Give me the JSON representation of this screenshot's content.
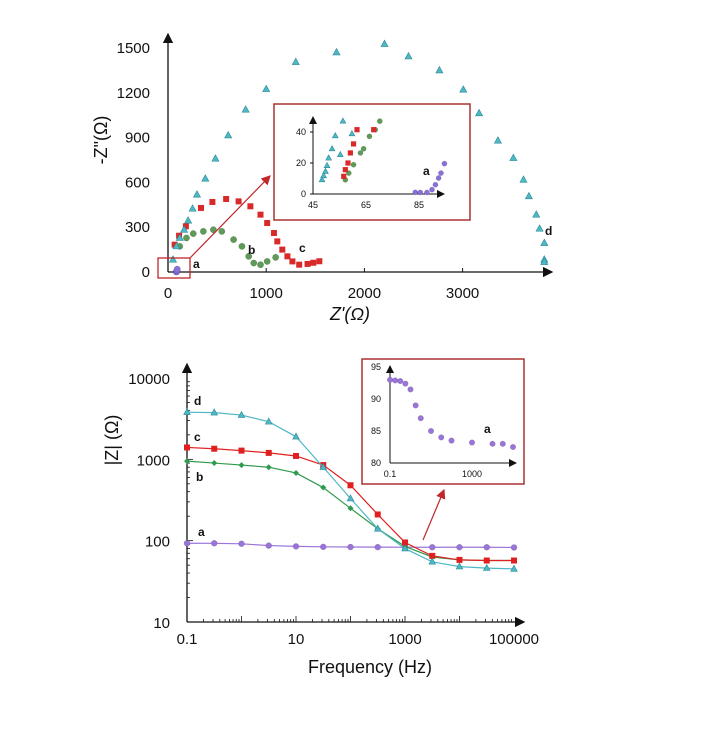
{
  "chart_data": [
    {
      "type": "scatter",
      "panel": "nyquist",
      "xlabel": "Z'(Ω)",
      "ylabel": "-Z\"(Ω)",
      "xlim": [
        0,
        3900
      ],
      "ylim": [
        0,
        1550
      ],
      "xticks": [
        "0",
        "1000",
        "2000",
        "3000"
      ],
      "yticks": [
        "0",
        "300",
        "600",
        "900",
        "1200",
        "1500"
      ],
      "grid": false,
      "series": [
        {
          "name": "a",
          "color": "#8a6fd8",
          "marker": "circle",
          "points": [
            [
              84,
              1
            ],
            [
              88,
              1
            ],
            [
              90,
              3
            ],
            [
              92,
              10
            ],
            [
              94,
              19
            ]
          ]
        },
        {
          "name": "b",
          "color": "#5e9a58",
          "marker": "circle",
          "points": [
            [
              120,
              172
            ],
            [
              188,
              228
            ],
            [
              257,
              257
            ],
            [
              360,
              272
            ],
            [
              462,
              283
            ],
            [
              548,
              272
            ],
            [
              668,
              217
            ],
            [
              753,
              172
            ],
            [
              822,
              105
            ],
            [
              873,
              60
            ],
            [
              942,
              49
            ],
            [
              1010,
              71
            ],
            [
              1096,
              98
            ]
          ]
        },
        {
          "name": "c",
          "color": "#d92a2a",
          "marker": "square",
          "points": [
            [
              68,
              183
            ],
            [
              113,
              243
            ],
            [
              182,
              306
            ],
            [
              336,
              429
            ],
            [
              452,
              469
            ],
            [
              592,
              489
            ],
            [
              719,
              473
            ],
            [
              839,
              440
            ],
            [
              942,
              384
            ],
            [
              1010,
              328
            ],
            [
              1079,
              261
            ],
            [
              1113,
              205
            ],
            [
              1164,
              150
            ],
            [
              1216,
              105
            ],
            [
              1267,
              71
            ],
            [
              1336,
              49
            ],
            [
              1421,
              54
            ],
            [
              1480,
              62
            ],
            [
              1541,
              72
            ]
          ]
        },
        {
          "name": "d",
          "color": "#4fb8c6",
          "marker": "triangle",
          "points": [
            [
              51,
              83
            ],
            [
              86,
              172
            ],
            [
              120,
              228
            ],
            [
              164,
              283
            ],
            [
              205,
              344
            ],
            [
              250,
              424
            ],
            [
              295,
              518
            ],
            [
              380,
              625
            ],
            [
              483,
              759
            ],
            [
              613,
              915
            ],
            [
              791,
              1087
            ],
            [
              1000,
              1225
            ],
            [
              1301,
              1406
            ],
            [
              1716,
              1471
            ],
            [
              2205,
              1527
            ],
            [
              2449,
              1444
            ],
            [
              2764,
              1350
            ],
            [
              3007,
              1221
            ],
            [
              3168,
              1063
            ],
            [
              3360,
              880
            ],
            [
              3517,
              763
            ],
            [
              3620,
              618
            ],
            [
              3675,
              507
            ],
            [
              3750,
              384
            ],
            [
              3784,
              290
            ],
            [
              3832,
              194
            ],
            [
              3832,
              83
            ],
            [
              3832,
              67
            ]
          ]
        }
      ]
    },
    {
      "type": "scatter",
      "panel": "nyquist-inset",
      "xlim": [
        45,
        95
      ],
      "ylim": [
        0,
        48
      ],
      "xticks": [
        "45",
        "65",
        "85"
      ],
      "yticks": [
        "0",
        "20",
        "40"
      ],
      "series": [
        {
          "name": "a",
          "color": "#8a6fd8",
          "marker": "circle",
          "points": [
            [
              83.6,
              1.1
            ],
            [
              85.5,
              1
            ],
            [
              88,
              1
            ],
            [
              89.9,
              2.8
            ],
            [
              91.2,
              6
            ],
            [
              92.4,
              10.3
            ],
            [
              93.3,
              13.5
            ],
            [
              94.6,
              19.6
            ]
          ]
        },
        {
          "name": "b",
          "color": "#5e9a58",
          "marker": "circle",
          "points": [
            [
              57.2,
              9.2
            ],
            [
              58.5,
              13.5
            ],
            [
              60.3,
              18.9
            ],
            [
              62.9,
              26.5
            ],
            [
              64.1,
              29.2
            ],
            [
              66.3,
              37.2
            ],
            [
              68.5,
              41.5
            ],
            [
              70.2,
              47
            ]
          ]
        },
        {
          "name": "c",
          "color": "#d92a2a",
          "marker": "square",
          "points": [
            [
              56.6,
              11.4
            ],
            [
              57.2,
              15.7
            ],
            [
              58.2,
              20
            ],
            [
              59.1,
              26.5
            ],
            [
              60.3,
              32.3
            ],
            [
              61.6,
              41.5
            ],
            [
              67.9,
              41.5
            ]
          ]
        },
        {
          "name": "d",
          "color": "#4fb8c6",
          "marker": "triangle",
          "points": [
            [
              48.4,
              9.2
            ],
            [
              49,
              11.8
            ],
            [
              49.7,
              14.6
            ],
            [
              50.3,
              18.3
            ],
            [
              50.9,
              23.2
            ],
            [
              52.2,
              29.2
            ],
            [
              53.4,
              37.6
            ],
            [
              55.3,
              25.4
            ],
            [
              56.3,
              47
            ],
            [
              59.7,
              38.9
            ]
          ]
        }
      ]
    },
    {
      "type": "line",
      "panel": "bode",
      "xlabel": "Frequency (Hz)",
      "ylabel": "|Z| (Ω)",
      "xscale": "log",
      "yscale": "log",
      "xlim": [
        0.1,
        100000
      ],
      "ylim": [
        10,
        10000
      ],
      "xticks": [
        "0.1",
        "10",
        "1000",
        "100000"
      ],
      "yticks": [
        "10",
        "100",
        "1000",
        "10000"
      ],
      "grid": false,
      "x": [
        0.1,
        0.316,
        1,
        3.16,
        10,
        31.6,
        100,
        316,
        1000,
        3162,
        10000,
        31623,
        100000
      ],
      "series": [
        {
          "name": "a",
          "color": "#9a74d8",
          "marker": "circle",
          "values": [
            93,
            92.8,
            91.5,
            87,
            85,
            84,
            83.5,
            83.3,
            83.2,
            83,
            83,
            83,
            82.5
          ]
        },
        {
          "name": "b",
          "color": "#2f9a4e",
          "marker": "diamond",
          "values": [
            950,
            900,
            850,
            800,
            680,
            450,
            250,
            140,
            85,
            63,
            58,
            57,
            57
          ]
        },
        {
          "name": "c",
          "color": "#e02020",
          "marker": "square",
          "values": [
            1400,
            1350,
            1280,
            1200,
            1100,
            850,
            480,
            210,
            95,
            65,
            58,
            57,
            57
          ]
        },
        {
          "name": "d",
          "color": "#4fb8c6",
          "marker": "triangle",
          "values": [
            3800,
            3750,
            3500,
            2900,
            1900,
            800,
            330,
            140,
            80,
            55,
            48,
            46,
            45
          ]
        }
      ]
    },
    {
      "type": "line",
      "panel": "bode-inset",
      "xscale": "log",
      "xlim": [
        0.1,
        100000
      ],
      "ylim": [
        80,
        95
      ],
      "xticks": [
        "0.1",
        "1000"
      ],
      "yticks": [
        "80",
        "85",
        "90",
        "95"
      ],
      "x": [
        0.1,
        0.178,
        0.316,
        0.562,
        1,
        1.78,
        3.16,
        10,
        31.6,
        100,
        1000,
        10000,
        31623,
        100000
      ],
      "series": [
        {
          "name": "a",
          "color": "#9a74d8",
          "marker": "circle",
          "values": [
            93,
            92.9,
            92.8,
            92.4,
            91.5,
            89,
            87,
            85,
            84,
            83.5,
            83.2,
            83,
            83,
            82.5
          ]
        }
      ]
    }
  ]
}
